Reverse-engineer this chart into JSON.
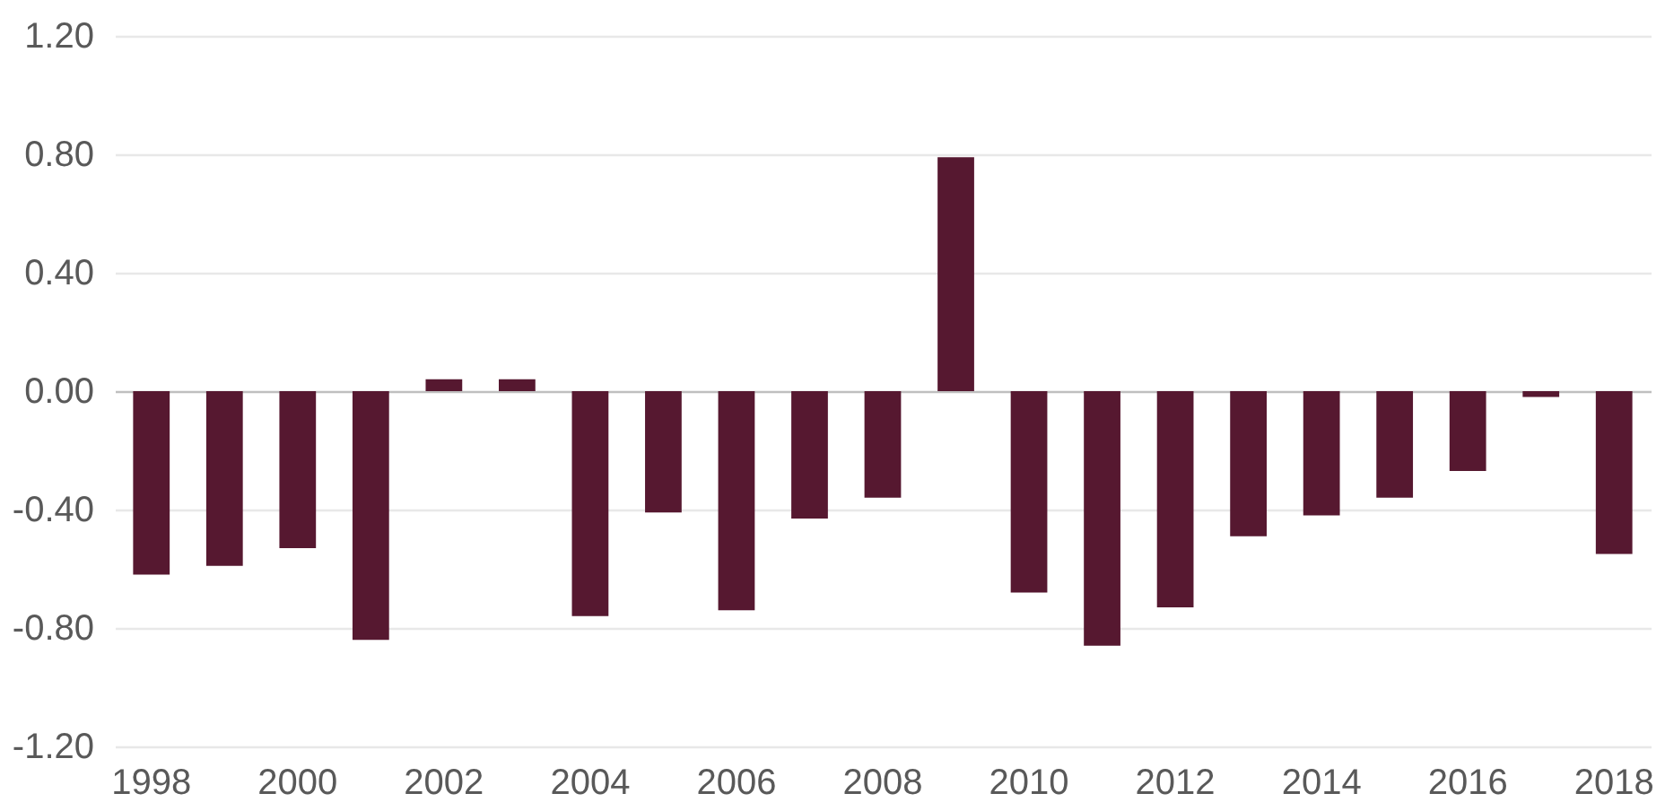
{
  "chart_data": {
    "type": "bar",
    "categories": [
      "1998",
      null,
      "2000",
      null,
      "2002",
      null,
      "2004",
      null,
      "2006",
      null,
      "2008",
      null,
      "2010",
      null,
      "2012",
      null,
      "2014",
      null,
      "2016",
      null,
      "2018"
    ],
    "values": [
      -0.62,
      -0.59,
      -0.53,
      -0.84,
      0.04,
      0.04,
      -0.76,
      -0.41,
      -0.74,
      -0.43,
      -0.36,
      0.79,
      -0.68,
      -0.86,
      -0.73,
      -0.49,
      -0.42,
      -0.36,
      -0.27,
      -0.02,
      -0.55
    ],
    "color": "#561830",
    "ylim": [
      -1.2,
      1.2
    ],
    "yticks": [
      {
        "value": -1.2,
        "label": "-1.20"
      },
      {
        "value": -0.8,
        "label": "-0.80"
      },
      {
        "value": -0.4,
        "label": "-0.40"
      },
      {
        "value": 0,
        "label": "0.00"
      },
      {
        "value": 0.4,
        "label": "0.40"
      },
      {
        "value": 0.8,
        "label": "0.80"
      },
      {
        "value": 1.2,
        "label": "1.20"
      }
    ],
    "grid": "y"
  }
}
